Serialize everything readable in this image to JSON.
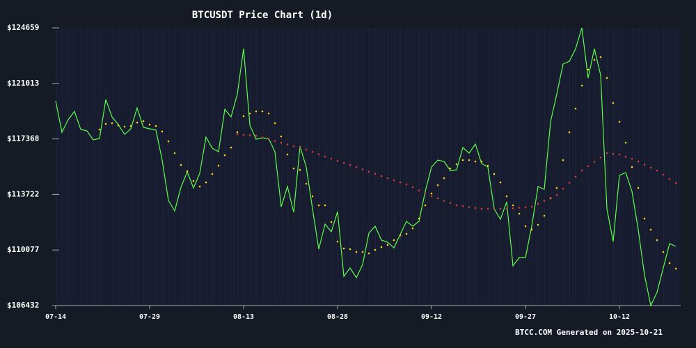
{
  "chart_data": {
    "type": "line",
    "title": "BTCUSDT Price Chart (1d)",
    "footer": "BTCC.COM Generated on 2025-10-21",
    "x": [
      0,
      1,
      2,
      3,
      4,
      5,
      6,
      7,
      8,
      9,
      10,
      11,
      12,
      13,
      14,
      15,
      16,
      17,
      18,
      19,
      20,
      21,
      22,
      23,
      24,
      25,
      26,
      27,
      28,
      29,
      30,
      31,
      32,
      33,
      34,
      35,
      36,
      37,
      38,
      39,
      40,
      41,
      42,
      43,
      44,
      45,
      46,
      47,
      48,
      49,
      50,
      51,
      52,
      53,
      54,
      55,
      56,
      57,
      58,
      59,
      60,
      61,
      62,
      63,
      64,
      65,
      66,
      67,
      68,
      69,
      70,
      71,
      72,
      73,
      74,
      75,
      76,
      77,
      78,
      79,
      80,
      81,
      82,
      83,
      84,
      85,
      86,
      87,
      88,
      89,
      90,
      91,
      92,
      93,
      94,
      95,
      96,
      97,
      98,
      99
    ],
    "xlim": [
      0,
      100
    ],
    "xticks": [
      {
        "value": 0,
        "label": "07-14"
      },
      {
        "value": 15,
        "label": "07-29"
      },
      {
        "value": 30,
        "label": "08-13"
      },
      {
        "value": 45,
        "label": "08-28"
      },
      {
        "value": 60,
        "label": "09-12"
      },
      {
        "value": 75,
        "label": "09-27"
      },
      {
        "value": 90,
        "label": "10-12"
      }
    ],
    "ylim": [
      106432,
      124659
    ],
    "yticks": [
      {
        "value": 106432,
        "label": "$106432"
      },
      {
        "value": 110077,
        "label": "$110077"
      },
      {
        "value": 113722,
        "label": "$113722"
      },
      {
        "value": 117368,
        "label": "$117368"
      },
      {
        "value": 121013,
        "label": "$121013"
      },
      {
        "value": 124659,
        "label": "$124659"
      }
    ],
    "series": [
      {
        "color": "#5cff4a",
        "style": "line",
        "values": [
          119862,
          117806,
          118629,
          119177,
          117989,
          117898,
          117304,
          117395,
          119953,
          118811,
          118309,
          117669,
          118035,
          119405,
          118126,
          118035,
          117943,
          115979,
          113330,
          112644,
          114198,
          115203,
          114152,
          115112,
          117487,
          116756,
          116527,
          119314,
          118811,
          120319,
          123288,
          118263,
          117349,
          117441,
          117395,
          116527,
          112918,
          114243,
          112553,
          116892,
          115522,
          112781,
          110132,
          111777,
          111274,
          112599,
          108350,
          108899,
          108259,
          109127,
          111183,
          111640,
          110726,
          110589,
          110223,
          111091,
          111959,
          111640,
          111959,
          113924,
          115522,
          115979,
          115888,
          115294,
          115340,
          116801,
          116436,
          117030,
          115751,
          115522,
          112781,
          112096,
          113238,
          109036,
          109584,
          109584,
          111640,
          114243,
          114061,
          118492,
          120319,
          122283,
          122465,
          123288,
          124659,
          121369,
          123288,
          121552,
          112781,
          110635,
          114974,
          115157,
          113924,
          111411,
          108442,
          106432,
          107300,
          108899,
          110498,
          110315
        ]
      },
      {
        "color": "#ffd21a",
        "style": "dots",
        "values": [
          null,
          null,
          null,
          null,
          null,
          null,
          null,
          117989,
          118354,
          118400,
          118263,
          118172,
          118217,
          118446,
          118537,
          118309,
          118217,
          117852,
          117212,
          116436,
          115659,
          115248,
          114609,
          114243,
          114517,
          115066,
          115614,
          116299,
          116801,
          117806,
          118857,
          119040,
          119177,
          119177,
          119040,
          118400,
          117532,
          116345,
          115431,
          115340,
          114426,
          113604,
          113010,
          113010,
          111914,
          110635,
          110178,
          110132,
          109949,
          109949,
          109858,
          110086,
          110269,
          110406,
          110726,
          111046,
          111137,
          111502,
          112142,
          113010,
          113786,
          114335,
          114791,
          115431,
          115705,
          115979,
          115979,
          115888,
          115888,
          115614,
          115066,
          114517,
          113604,
          113010,
          112462,
          111640,
          111411,
          111731,
          112325,
          113467,
          114152,
          115979,
          117806,
          119359,
          120867,
          121918,
          122557,
          122740,
          121369,
          119725,
          118492,
          117121,
          115522,
          114152,
          112142,
          111411,
          110726,
          109949,
          109218,
          108853
        ]
      },
      {
        "color": "#d93a3a",
        "style": "dots",
        "values": [
          null,
          null,
          null,
          null,
          null,
          null,
          null,
          null,
          null,
          null,
          null,
          null,
          null,
          null,
          null,
          null,
          null,
          null,
          null,
          null,
          null,
          null,
          null,
          null,
          null,
          null,
          null,
          null,
          null,
          117669,
          117637,
          117610,
          117578,
          117464,
          117350,
          117235,
          117121,
          117007,
          116893,
          116779,
          116664,
          116514,
          116367,
          116217,
          116070,
          115933,
          115796,
          115659,
          115522,
          115372,
          115225,
          115075,
          114928,
          114791,
          114654,
          114517,
          114380,
          114198,
          113992,
          113796,
          113604,
          113467,
          113307,
          113156,
          113010,
          112964,
          112896,
          112836,
          112782,
          112782,
          112782,
          112782,
          112782,
          112814,
          112850,
          112882,
          112919,
          113110,
          113307,
          113499,
          113695,
          114106,
          114495,
          114892,
          115294,
          115577,
          115865,
          116148,
          116436,
          116390,
          116345,
          116208,
          116070,
          115888,
          115682,
          115486,
          115294,
          115020,
          114746,
          114472
        ]
      }
    ]
  }
}
